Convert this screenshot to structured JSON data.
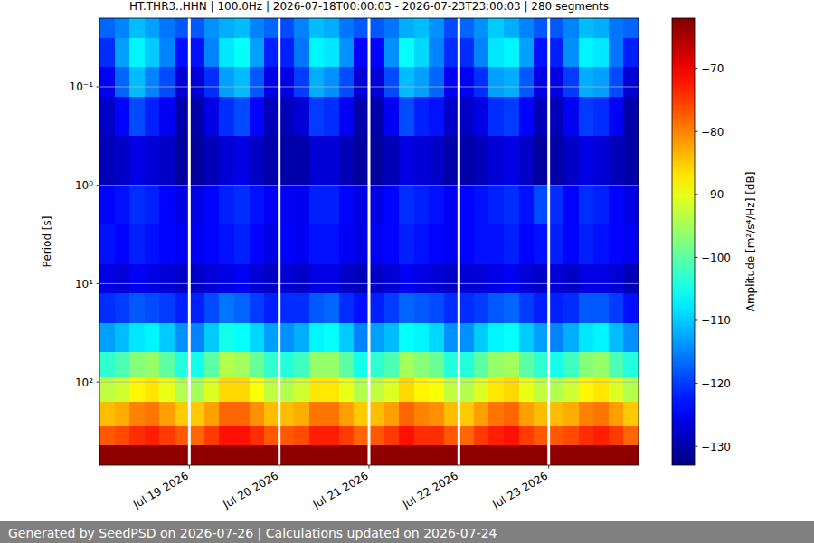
{
  "chart_data": {
    "type": "heatmap",
    "title": "HT.THR3..HHN | 100.0Hz | 2026-07-18T00:00:03 - 2026-07-23T23:00:03 | 280 segments",
    "y_label": "Period [s]",
    "footer": "Generated by SeedPSD on 2026-07-26 | Calculations updated on 2026-07-24",
    "log": "y",
    "grid": true,
    "xlim": [
      "2026-07-18T00:00",
      "2026-07-24T00:00"
    ],
    "xticks": [
      {
        "value": "2026-07-19",
        "label": "Jul 19 2026"
      },
      {
        "value": "2026-07-20",
        "label": "Jul 20 2026"
      },
      {
        "value": "2026-07-21",
        "label": "Jul 21 2026"
      },
      {
        "value": "2026-07-22",
        "label": "Jul 22 2026"
      },
      {
        "value": "2026-07-23",
        "label": "Jul 23 2026"
      }
    ],
    "ylim": [
      0.02,
      700
    ],
    "yticks": [
      {
        "value": 0.1,
        "label": "10⁻¹"
      },
      {
        "value": 1,
        "label": "10⁰"
      },
      {
        "value": 10,
        "label": "10¹"
      },
      {
        "value": 100,
        "label": "10²"
      }
    ],
    "x_edges": [
      "2026-07-18T00:00",
      "2026-07-18T04:00",
      "2026-07-18T08:00",
      "2026-07-18T12:00",
      "2026-07-18T16:00",
      "2026-07-18T20:00",
      "2026-07-19T00:00",
      "2026-07-19T04:00",
      "2026-07-19T08:00",
      "2026-07-19T12:00",
      "2026-07-19T16:00",
      "2026-07-19T20:00",
      "2026-07-20T00:00",
      "2026-07-20T04:00",
      "2026-07-20T08:00",
      "2026-07-20T12:00",
      "2026-07-20T16:00",
      "2026-07-20T20:00",
      "2026-07-21T00:00",
      "2026-07-21T04:00",
      "2026-07-21T08:00",
      "2026-07-21T12:00",
      "2026-07-21T16:00",
      "2026-07-21T20:00",
      "2026-07-22T00:00",
      "2026-07-22T04:00",
      "2026-07-22T08:00",
      "2026-07-22T12:00",
      "2026-07-22T16:00",
      "2026-07-22T20:00",
      "2026-07-23T00:00",
      "2026-07-23T04:00",
      "2026-07-23T08:00",
      "2026-07-23T12:00",
      "2026-07-23T16:00",
      "2026-07-23T20:00",
      "2026-07-24T00:00"
    ],
    "y_edges": [
      0.02,
      0.032,
      0.063,
      0.126,
      0.316,
      1,
      2.5,
      6.3,
      12.6,
      25,
      50,
      89,
      158,
      282,
      437,
      700
    ],
    "cells": [
      [
        -117,
        -115,
        -111,
        -113,
        -116,
        -118,
        -118,
        -114,
        -112,
        -111,
        -115,
        -117,
        -119,
        -115,
        -111,
        -112,
        -116,
        -118,
        -118,
        -116,
        -112,
        -111,
        -114,
        -119,
        -117,
        -114,
        -110,
        -112,
        -115,
        -118,
        -118,
        -115,
        -111,
        -112,
        -116,
        -117
      ],
      [
        -121,
        -113,
        -107,
        -110,
        -115,
        -123,
        -123,
        -115,
        -108,
        -106,
        -113,
        -122,
        -122,
        -116,
        -107,
        -108,
        -114,
        -124,
        -124,
        -114,
        -106,
        -109,
        -115,
        -121,
        -121,
        -115,
        -108,
        -107,
        -113,
        -123,
        -122,
        -114,
        -107,
        -108,
        -116,
        -122
      ],
      [
        -125,
        -117,
        -111,
        -115,
        -119,
        -127,
        -127,
        -121,
        -113,
        -111,
        -118,
        -126,
        -126,
        -120,
        -112,
        -114,
        -119,
        -127,
        -127,
        -119,
        -111,
        -113,
        -117,
        -125,
        -125,
        -121,
        -113,
        -112,
        -118,
        -126,
        -126,
        -120,
        -112,
        -113,
        -119,
        -127
      ],
      [
        -128,
        -124,
        -119,
        -122,
        -125,
        -130,
        -130,
        -126,
        -121,
        -119,
        -124,
        -129,
        -129,
        -127,
        -120,
        -121,
        -125,
        -130,
        -130,
        -125,
        -119,
        -122,
        -123,
        -128,
        -128,
        -126,
        -121,
        -120,
        -124,
        -129,
        -129,
        -125,
        -120,
        -121,
        -125,
        -130
      ],
      [
        -129,
        -128,
        -126,
        -127,
        -128,
        -131,
        -131,
        -129,
        -127,
        -126,
        -128,
        -130,
        -130,
        -130,
        -127,
        -127,
        -129,
        -131,
        -131,
        -129,
        -126,
        -127,
        -128,
        -130,
        -130,
        -129,
        -127,
        -126,
        -128,
        -131,
        -130,
        -128,
        -126,
        -127,
        -129,
        -130
      ],
      [
        -124,
        -123,
        -121,
        -122,
        -124,
        -126,
        -126,
        -124,
        -122,
        -121,
        -123,
        -125,
        -125,
        -125,
        -122,
        -122,
        -124,
        -126,
        -126,
        -124,
        -121,
        -122,
        -123,
        -125,
        -124,
        -123,
        -122,
        -121,
        -123,
        -119,
        -121,
        -124,
        -121,
        -122,
        -124,
        -126
      ],
      [
        -123,
        -124,
        -122,
        -123,
        -124,
        -125,
        -125,
        -124,
        -123,
        -122,
        -124,
        -126,
        -124,
        -125,
        -123,
        -123,
        -125,
        -126,
        -125,
        -124,
        -122,
        -123,
        -124,
        -125,
        -124,
        -123,
        -123,
        -122,
        -124,
        -123,
        -122,
        -124,
        -122,
        -123,
        -124,
        -125
      ],
      [
        -126,
        -127,
        -125,
        -126,
        -127,
        -128,
        -128,
        -127,
        -126,
        -125,
        -127,
        -128,
        -127,
        -128,
        -126,
        -126,
        -128,
        -129,
        -128,
        -127,
        -125,
        -126,
        -127,
        -128,
        -127,
        -127,
        -126,
        -125,
        -127,
        -128,
        -127,
        -128,
        -126,
        -126,
        -127,
        -129
      ],
      [
        -121,
        -120,
        -118,
        -119,
        -120,
        -122,
        -122,
        -119,
        -116,
        -117,
        -120,
        -122,
        -121,
        -121,
        -118,
        -117,
        -121,
        -123,
        -122,
        -120,
        -117,
        -118,
        -119,
        -121,
        -121,
        -120,
        -118,
        -117,
        -120,
        -122,
        -122,
        -121,
        -118,
        -118,
        -120,
        -123
      ],
      [
        -113,
        -111,
        -108,
        -107,
        -110,
        -114,
        -115,
        -110,
        -105,
        -106,
        -109,
        -113,
        -114,
        -112,
        -107,
        -106,
        -110,
        -115,
        -113,
        -111,
        -106,
        -107,
        -109,
        -114,
        -114,
        -110,
        -107,
        -106,
        -110,
        -113,
        -115,
        -112,
        -108,
        -107,
        -111,
        -114
      ],
      [
        -103,
        -101,
        -97,
        -96,
        -100,
        -104,
        -105,
        -100,
        -94,
        -95,
        -99,
        -103,
        -104,
        -102,
        -96,
        -96,
        -100,
        -105,
        -103,
        -101,
        -95,
        -97,
        -99,
        -104,
        -104,
        -100,
        -96,
        -95,
        -100,
        -103,
        -105,
        -102,
        -97,
        -96,
        -101,
        -104
      ],
      [
        -93,
        -92,
        -88,
        -87,
        -90,
        -94,
        -95,
        -91,
        -86,
        -86,
        -89,
        -93,
        -94,
        -92,
        -87,
        -87,
        -90,
        -94,
        -93,
        -91,
        -86,
        -88,
        -89,
        -93,
        -94,
        -91,
        -87,
        -86,
        -90,
        -93,
        -94,
        -92,
        -88,
        -87,
        -91,
        -94
      ],
      [
        -84,
        -83,
        -80,
        -79,
        -82,
        -85,
        -85,
        -82,
        -78,
        -78,
        -81,
        -84,
        -84,
        -83,
        -79,
        -79,
        -82,
        -85,
        -84,
        -82,
        -78,
        -80,
        -81,
        -84,
        -85,
        -82,
        -79,
        -78,
        -82,
        -84,
        -84,
        -83,
        -80,
        -79,
        -82,
        -85
      ],
      [
        -77,
        -76,
        -74,
        -73,
        -75,
        -77,
        -78,
        -75,
        -72,
        -72,
        -74,
        -77,
        -77,
        -76,
        -73,
        -73,
        -75,
        -78,
        -77,
        -75,
        -72,
        -74,
        -74,
        -77,
        -78,
        -75,
        -73,
        -72,
        -75,
        -77,
        -77,
        -76,
        -74,
        -73,
        -75,
        -78
      ],
      [
        -63,
        -63,
        -63,
        -63,
        -63,
        -63,
        -63,
        -63,
        -63,
        -63,
        -63,
        -63,
        -63,
        -63,
        -63,
        -63,
        -63,
        -63,
        -63,
        -63,
        -63,
        -63,
        -63,
        -63,
        -63,
        -63,
        -63,
        -63,
        -63,
        -63,
        -63,
        -63,
        -63,
        -63,
        -63,
        -63
      ]
    ],
    "colorbar": {
      "label": "Amplitude [m²/s⁴/Hz] [dB]",
      "range": [
        -133,
        -62
      ],
      "ticks": [
        -130,
        -120,
        -110,
        -100,
        -90,
        -80,
        -70
      ]
    }
  }
}
